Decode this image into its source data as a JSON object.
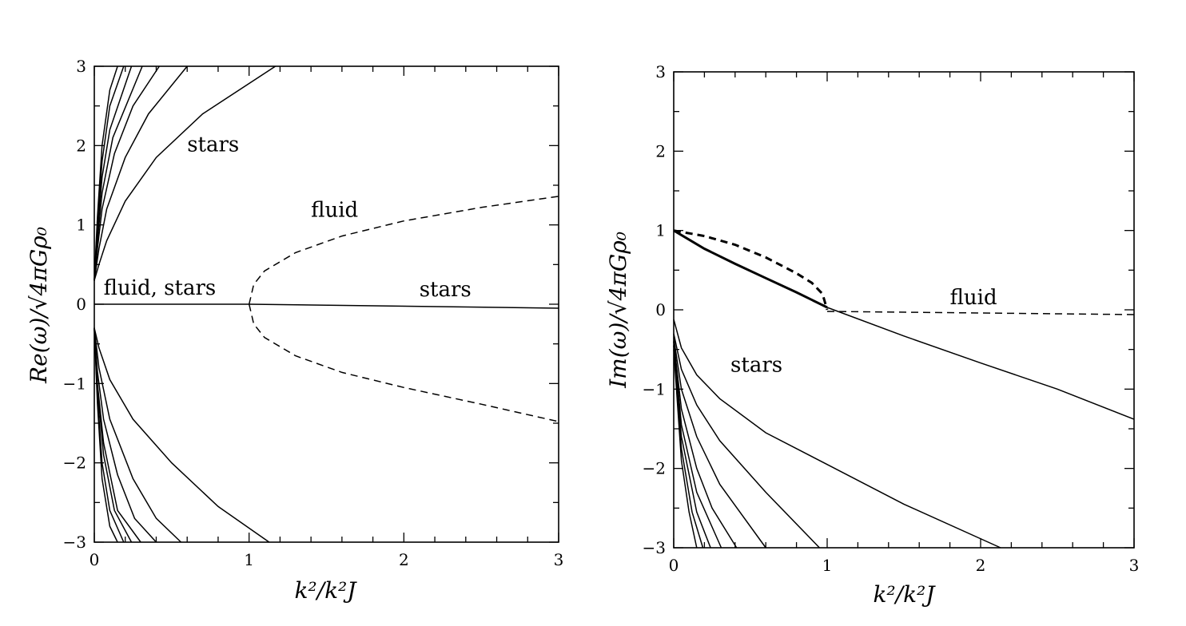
{
  "chart_data": [
    {
      "type": "line",
      "xlabel": "k²/k²J",
      "ylabel": "Re(ω)/√4πGρ₀",
      "xlim": [
        0,
        3
      ],
      "ylim": [
        -3,
        3
      ],
      "x_ticks": [
        "0",
        "1",
        "2",
        "3"
      ],
      "y_ticks": [
        "3",
        "2",
        "1",
        "0",
        "−1",
        "−2",
        "−3"
      ],
      "grid": false,
      "annotations": [
        {
          "text": "stars",
          "x": 0.6,
          "y": 1.93
        },
        {
          "text": "fluid",
          "x": 1.4,
          "y": 1.1
        },
        {
          "text": "fluid, stars",
          "x": 0.06,
          "y": 0.12
        },
        {
          "text": "stars",
          "x": 2.1,
          "y": 0.1
        }
      ],
      "series": [
        {
          "style": "solid",
          "points": [
            [
              0,
              0
            ],
            [
              1,
              0
            ],
            [
              3,
              -0.05
            ]
          ]
        },
        {
          "style": "dashed",
          "points": [
            [
              1,
              0
            ],
            [
              1.03,
              0.25
            ],
            [
              1.1,
              0.42
            ],
            [
              1.3,
              0.65
            ],
            [
              1.6,
              0.86
            ],
            [
              2,
              1.05
            ],
            [
              2.5,
              1.22
            ],
            [
              3,
              1.36
            ]
          ]
        },
        {
          "style": "dashed",
          "points": [
            [
              1,
              0
            ],
            [
              1.03,
              -0.25
            ],
            [
              1.1,
              -0.42
            ],
            [
              1.3,
              -0.65
            ],
            [
              1.6,
              -0.86
            ],
            [
              2,
              -1.05
            ],
            [
              2.5,
              -1.26
            ],
            [
              3,
              -1.48
            ]
          ]
        },
        {
          "style": "solid",
          "points": [
            [
              0,
              0.3
            ],
            [
              0.03,
              0.5
            ],
            [
              0.08,
              0.8
            ],
            [
              0.2,
              1.3
            ],
            [
              0.4,
              1.85
            ],
            [
              0.7,
              2.4
            ],
            [
              1.17,
              3
            ]
          ]
        },
        {
          "style": "solid",
          "points": [
            [
              0,
              0.3
            ],
            [
              0.03,
              0.7
            ],
            [
              0.08,
              1.2
            ],
            [
              0.2,
              1.85
            ],
            [
              0.35,
              2.4
            ],
            [
              0.6,
              3
            ]
          ]
        },
        {
          "style": "solid",
          "points": [
            [
              0,
              0.3
            ],
            [
              0.02,
              0.7
            ],
            [
              0.05,
              1.2
            ],
            [
              0.13,
              1.9
            ],
            [
              0.25,
              2.5
            ],
            [
              0.42,
              3
            ]
          ]
        },
        {
          "style": "solid",
          "points": [
            [
              0,
              0.3
            ],
            [
              0.02,
              0.8
            ],
            [
              0.05,
              1.4
            ],
            [
              0.12,
              2.1
            ],
            [
              0.31,
              3
            ]
          ]
        },
        {
          "style": "solid",
          "points": [
            [
              0,
              0.3
            ],
            [
              0.02,
              0.9
            ],
            [
              0.05,
              1.6
            ],
            [
              0.1,
              2.2
            ],
            [
              0.24,
              3
            ]
          ]
        },
        {
          "style": "solid",
          "points": [
            [
              0,
              0.3
            ],
            [
              0.02,
              1.0
            ],
            [
              0.05,
              1.8
            ],
            [
              0.1,
              2.5
            ],
            [
              0.19,
              3
            ]
          ]
        },
        {
          "style": "solid",
          "points": [
            [
              0,
              0.3
            ],
            [
              0.02,
              1.1
            ],
            [
              0.05,
              2.0
            ],
            [
              0.1,
              2.7
            ],
            [
              0.15,
              3
            ]
          ]
        },
        {
          "style": "solid",
          "points": [
            [
              0,
              -0.3
            ],
            [
              0.03,
              -0.55
            ],
            [
              0.1,
              -0.95
            ],
            [
              0.25,
              -1.45
            ],
            [
              0.5,
              -2.0
            ],
            [
              0.8,
              -2.55
            ],
            [
              1.13,
              -3
            ]
          ]
        },
        {
          "style": "solid",
          "points": [
            [
              0,
              -0.3
            ],
            [
              0.03,
              -0.8
            ],
            [
              0.1,
              -1.45
            ],
            [
              0.25,
              -2.2
            ],
            [
              0.4,
              -2.7
            ],
            [
              0.56,
              -3
            ]
          ]
        },
        {
          "style": "solid",
          "points": [
            [
              0,
              -0.3
            ],
            [
              0.02,
              -0.85
            ],
            [
              0.06,
              -1.45
            ],
            [
              0.15,
              -2.15
            ],
            [
              0.26,
              -2.7
            ],
            [
              0.4,
              -3
            ]
          ]
        },
        {
          "style": "solid",
          "points": [
            [
              0,
              -0.3
            ],
            [
              0.02,
              -1.0
            ],
            [
              0.06,
              -1.75
            ],
            [
              0.15,
              -2.6
            ],
            [
              0.3,
              -3
            ]
          ]
        },
        {
          "style": "solid",
          "points": [
            [
              0,
              -0.3
            ],
            [
              0.02,
              -1.05
            ],
            [
              0.06,
              -1.9
            ],
            [
              0.13,
              -2.6
            ],
            [
              0.24,
              -3
            ]
          ]
        },
        {
          "style": "solid",
          "points": [
            [
              0,
              -0.3
            ],
            [
              0.02,
              -1.15
            ],
            [
              0.05,
              -2.0
            ],
            [
              0.1,
              -2.6
            ],
            [
              0.19,
              -3
            ]
          ]
        },
        {
          "style": "solid",
          "points": [
            [
              0,
              -0.3
            ],
            [
              0.02,
              -1.25
            ],
            [
              0.05,
              -2.2
            ],
            [
              0.1,
              -2.8
            ],
            [
              0.15,
              -3
            ]
          ]
        }
      ]
    },
    {
      "type": "line",
      "xlabel": "k²/k²J",
      "ylabel": "Im(ω)/√4πGρ₀",
      "xlim": [
        0,
        3
      ],
      "ylim": [
        -3,
        3
      ],
      "x_ticks": [
        "0",
        "1",
        "2",
        "3"
      ],
      "y_ticks": [
        "3",
        "2",
        "1",
        "0",
        "−1",
        "−2",
        "−3"
      ],
      "grid": false,
      "annotations": [
        {
          "text": "fluid",
          "x": 1.8,
          "y": 0.07
        },
        {
          "text": "stars",
          "x": 0.37,
          "y": -0.78
        }
      ],
      "series": [
        {
          "style": "bold-dashed",
          "points": [
            [
              0,
              1
            ],
            [
              0.2,
              0.93
            ],
            [
              0.4,
              0.82
            ],
            [
              0.6,
              0.66
            ],
            [
              0.8,
              0.46
            ],
            [
              0.9,
              0.34
            ],
            [
              0.97,
              0.2
            ],
            [
              1,
              0
            ]
          ]
        },
        {
          "style": "bold-solid",
          "points": [
            [
              0,
              1
            ],
            [
              0.2,
              0.77
            ],
            [
              0.4,
              0.58
            ],
            [
              0.6,
              0.4
            ],
            [
              0.8,
              0.22
            ],
            [
              1,
              0.03
            ]
          ]
        },
        {
          "style": "dashed",
          "points": [
            [
              1,
              -0.02
            ],
            [
              3,
              -0.06
            ]
          ]
        },
        {
          "style": "solid",
          "points": [
            [
              1,
              0.03
            ],
            [
              1.5,
              -0.33
            ],
            [
              2,
              -0.67
            ],
            [
              2.5,
              -1.0
            ],
            [
              3,
              -1.38
            ]
          ]
        },
        {
          "style": "solid",
          "points": [
            [
              0,
              -0.12
            ],
            [
              0.05,
              -0.48
            ],
            [
              0.15,
              -0.82
            ],
            [
              0.3,
              -1.12
            ],
            [
              0.6,
              -1.55
            ],
            [
              1,
              -1.95
            ],
            [
              1.5,
              -2.45
            ],
            [
              2.13,
              -3
            ]
          ]
        },
        {
          "style": "solid",
          "points": [
            [
              0,
              -0.3
            ],
            [
              0.05,
              -0.75
            ],
            [
              0.15,
              -1.2
            ],
            [
              0.3,
              -1.65
            ],
            [
              0.6,
              -2.3
            ],
            [
              0.95,
              -3
            ]
          ]
        },
        {
          "style": "solid",
          "points": [
            [
              0,
              -0.35
            ],
            [
              0.05,
              -1.0
            ],
            [
              0.15,
              -1.6
            ],
            [
              0.3,
              -2.2
            ],
            [
              0.6,
              -3
            ]
          ]
        },
        {
          "style": "solid",
          "points": [
            [
              0,
              -0.4
            ],
            [
              0.05,
              -1.25
            ],
            [
              0.15,
              -2.0
            ],
            [
              0.25,
              -2.5
            ],
            [
              0.41,
              -3
            ]
          ]
        },
        {
          "style": "solid",
          "points": [
            [
              0,
              -0.4
            ],
            [
              0.05,
              -1.45
            ],
            [
              0.15,
              -2.3
            ],
            [
              0.31,
              -3
            ]
          ]
        },
        {
          "style": "solid",
          "points": [
            [
              0,
              -0.45
            ],
            [
              0.05,
              -1.6
            ],
            [
              0.15,
              -2.55
            ],
            [
              0.24,
              -3
            ]
          ]
        },
        {
          "style": "solid",
          "points": [
            [
              0,
              -0.45
            ],
            [
              0.05,
              -1.75
            ],
            [
              0.12,
              -2.55
            ],
            [
              0.19,
              -3
            ]
          ]
        },
        {
          "style": "solid",
          "points": [
            [
              0,
              -0.5
            ],
            [
              0.05,
              -1.9
            ],
            [
              0.1,
              -2.55
            ],
            [
              0.15,
              -3
            ]
          ]
        }
      ]
    }
  ]
}
